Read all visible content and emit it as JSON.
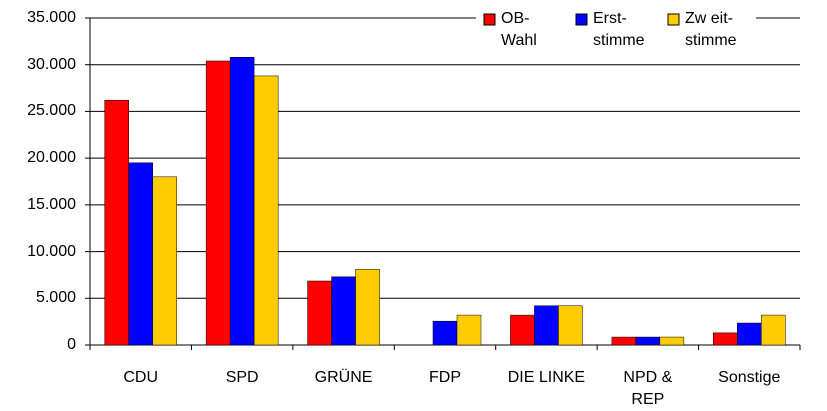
{
  "chart_data": {
    "type": "bar",
    "categories": [
      "CDU",
      "SPD",
      "GRÜNE",
      "FDP",
      "DIE LINKE",
      "NPD &\nREP",
      "Sonstige"
    ],
    "series": [
      {
        "name": "OB-\nWahl",
        "color": "#ff0000",
        "values": [
          26200,
          30400,
          6850,
          null,
          3200,
          850,
          1300
        ]
      },
      {
        "name": "Erst-\nstimme",
        "color": "#0000ff",
        "values": [
          19500,
          30800,
          7300,
          2550,
          4200,
          850,
          2350
        ]
      },
      {
        "name": "Zw eit-\nstimme",
        "color": "#ffcc00",
        "values": [
          18000,
          28800,
          8100,
          3200,
          4200,
          850,
          3200
        ]
      }
    ],
    "ylim": [
      0,
      35000
    ],
    "yticks": [
      0,
      {
        "value": 5000,
        "label": "5.000"
      },
      {
        "value": 10000,
        "label": "10.000"
      },
      {
        "value": 15000,
        "label": "15.000"
      },
      {
        "value": 20000,
        "label": "20.000"
      },
      {
        "value": 25000,
        "label": "25.000"
      },
      {
        "value": 30000,
        "label": "30.000"
      },
      {
        "value": 35000,
        "label": "35.000"
      }
    ],
    "grid": true,
    "legend": "top-right"
  }
}
